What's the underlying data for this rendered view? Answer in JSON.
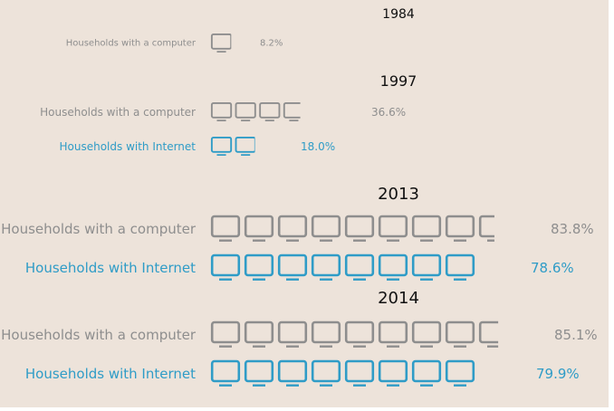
{
  "colors": {
    "background": "#ede3da",
    "computer": "#8e8e8e",
    "internet": "#2f9cc7",
    "title": "#111111"
  },
  "icon_name": "computer-monitor-icon",
  "chart_data": [
    {
      "type": "pictograph",
      "title": "1984",
      "units_per_icon": 10,
      "series": [
        {
          "name": "Households with a computer",
          "value": 8.2,
          "label": "8.2%",
          "color": "#8e8e8e"
        }
      ]
    },
    {
      "type": "pictograph",
      "title": "1997",
      "units_per_icon": 10,
      "series": [
        {
          "name": "Households with a computer",
          "value": 36.6,
          "label": "36.6%",
          "color": "#8e8e8e"
        },
        {
          "name": "Households with Internet",
          "value": 18.0,
          "label": "18.0%",
          "color": "#2f9cc7"
        }
      ]
    },
    {
      "type": "pictograph",
      "title": "2013",
      "units_per_icon": 10,
      "series": [
        {
          "name": "Households with a computer",
          "value": 83.8,
          "label": "83.8%",
          "color": "#8e8e8e"
        },
        {
          "name": "Households with Internet",
          "value": 78.6,
          "label": "78.6%",
          "color": "#2f9cc7"
        }
      ]
    },
    {
      "type": "pictograph",
      "title": "2014",
      "units_per_icon": 10,
      "series": [
        {
          "name": "Households with a computer",
          "value": 85.1,
          "label": "85.1%",
          "color": "#8e8e8e"
        },
        {
          "name": "Households with Internet",
          "value": 79.9,
          "label": "79.9%",
          "color": "#2f9cc7"
        }
      ]
    }
  ]
}
